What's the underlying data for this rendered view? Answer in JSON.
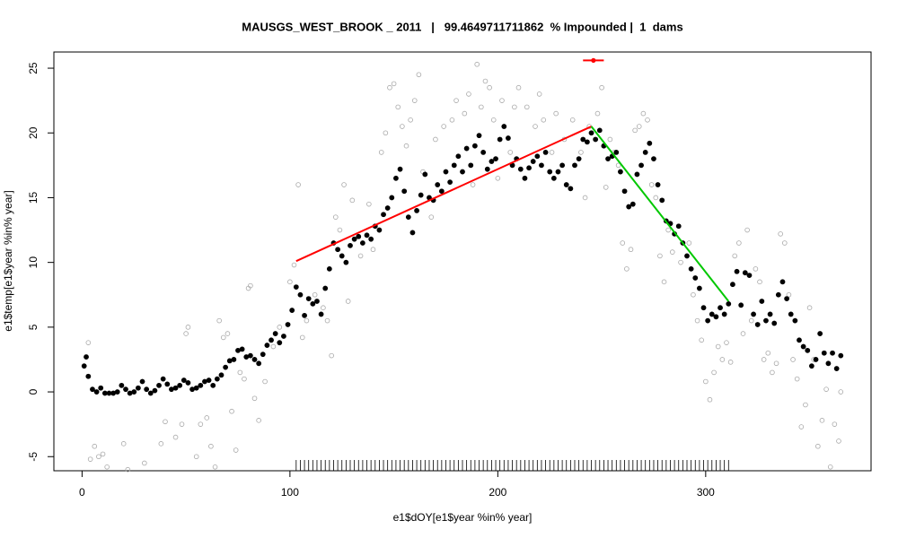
{
  "chart_data": {
    "type": "scatter",
    "title": "MAUSGS_WEST_BROOK _ 2011   |   99.4649711711862  % Impounded |  1  dams",
    "xlabel": "e1$dOY[e1$year %in% year]",
    "ylabel": "e1$temp[e1$year %in% year]",
    "xlim": [
      -13.56,
      379.56
    ],
    "ylim": [
      -6.09,
      26.25
    ],
    "xticks": [
      0,
      100,
      200,
      300
    ],
    "yticks": [
      -5,
      0,
      5,
      10,
      15,
      20,
      25
    ],
    "series": [
      {
        "color": "#000000",
        "marker": "filled",
        "x": [
          1,
          2,
          3,
          5,
          7,
          9,
          11,
          13,
          15,
          17,
          19,
          21,
          23,
          25,
          27,
          29,
          31,
          33,
          35,
          37,
          39,
          41,
          43,
          45,
          47,
          49,
          51,
          53,
          55,
          57,
          59,
          61,
          63,
          65,
          67,
          69,
          71,
          73,
          75,
          77,
          79,
          81,
          83,
          85,
          87,
          89,
          91,
          93,
          95,
          97,
          99,
          101,
          103,
          105,
          107,
          109,
          111,
          113,
          115,
          117,
          119,
          121,
          123,
          125,
          127,
          129,
          131,
          133,
          135,
          137,
          139,
          141,
          143,
          145,
          147,
          149,
          151,
          153,
          155,
          157,
          159,
          161,
          163,
          165,
          167,
          169,
          171,
          173,
          175,
          177,
          179,
          181,
          183,
          185,
          187,
          189,
          191,
          193,
          195,
          197,
          199,
          201,
          203,
          205,
          207,
          209,
          211,
          213,
          215,
          217,
          219,
          221,
          223,
          225,
          227,
          229,
          231,
          233,
          235,
          237,
          239,
          241,
          243,
          245,
          247,
          249,
          251,
          253,
          255,
          257,
          259,
          261,
          263,
          265,
          267,
          269,
          271,
          273,
          275,
          277,
          279,
          281,
          283,
          285,
          287,
          289,
          291,
          293,
          295,
          297,
          299,
          301,
          303,
          305,
          307,
          309,
          311,
          313,
          315,
          317,
          319,
          321,
          323,
          325,
          327,
          329,
          331,
          333,
          335,
          337,
          339,
          341,
          343,
          345,
          347,
          349,
          351,
          353,
          355,
          357,
          359,
          361,
          363,
          365
        ],
        "values": [
          2.0,
          2.7,
          1.2,
          0.2,
          0,
          0.3,
          -0.1,
          -0.1,
          -0.1,
          0,
          0.5,
          0.2,
          -0.1,
          0,
          0.3,
          0.8,
          0.2,
          -0.1,
          0.1,
          0.5,
          1.0,
          0.6,
          0.2,
          0.3,
          0.5,
          0.9,
          0.7,
          0.2,
          0.3,
          0.5,
          0.8,
          0.9,
          0.5,
          1.0,
          1.3,
          1.9,
          2.4,
          2.5,
          3.2,
          3.3,
          2.7,
          2.8,
          2.5,
          2.2,
          2.9,
          3.6,
          4.0,
          4.5,
          3.8,
          4.3,
          5.2,
          6.3,
          8.1,
          7.5,
          5.9,
          7.2,
          6.8,
          7.0,
          6.0,
          8.0,
          9.5,
          11.5,
          11.0,
          10.5,
          10.0,
          11.3,
          11.8,
          12.0,
          11.5,
          12.1,
          11.8,
          12.8,
          12.5,
          13.7,
          14.2,
          15.0,
          16.5,
          17.2,
          15.5,
          13.5,
          12.3,
          14.0,
          15.2,
          16.8,
          15.0,
          14.8,
          16.0,
          15.5,
          17.0,
          16.2,
          17.5,
          18.2,
          17.0,
          18.8,
          17.5,
          19.0,
          19.8,
          18.5,
          17.2,
          17.8,
          18.0,
          19.5,
          20.5,
          19.6,
          17.5,
          18.0,
          17.2,
          16.5,
          17.3,
          17.8,
          18.2,
          17.5,
          18.5,
          17.0,
          16.5,
          17.0,
          17.5,
          16.0,
          15.7,
          17.5,
          18.0,
          19.5,
          19.3,
          20.0,
          19.5,
          20.2,
          19.0,
          18.0,
          18.2,
          18.5,
          17.0,
          15.5,
          14.3,
          14.5,
          16.8,
          17.5,
          18.5,
          19.2,
          18.0,
          16.0,
          14.8,
          13.2,
          13.0,
          12.2,
          12.8,
          11.5,
          10.5,
          9.5,
          8.8,
          8.0,
          6.5,
          5.5,
          6.0,
          5.8,
          6.5,
          6.0,
          6.8,
          8.3,
          9.3,
          6.7,
          9.2,
          9.0,
          6.0,
          5.2,
          7.0,
          5.5,
          6.0,
          5.3,
          7.5,
          8.5,
          7.2,
          6.0,
          5.5,
          4.0,
          3.5,
          3.2,
          2.0,
          2.5,
          4.5,
          3.0,
          2.2,
          3.0,
          1.8,
          2.8
        ]
      },
      {
        "color": "#a8a8a8",
        "marker": "open",
        "x": [
          3,
          4,
          6,
          8,
          10,
          12,
          20,
          22,
          30,
          38,
          40,
          45,
          48,
          50,
          51,
          55,
          57,
          60,
          62,
          64,
          66,
          68,
          70,
          72,
          74,
          76,
          78,
          80,
          81,
          83,
          85,
          88,
          92,
          95,
          100,
          102,
          104,
          106,
          108,
          112,
          116,
          118,
          120,
          122,
          124,
          126,
          128,
          130,
          134,
          138,
          140,
          144,
          146,
          148,
          150,
          152,
          154,
          156,
          158,
          160,
          162,
          164,
          168,
          170,
          174,
          178,
          180,
          184,
          186,
          188,
          190,
          192,
          194,
          196,
          198,
          200,
          202,
          206,
          208,
          210,
          214,
          218,
          220,
          222,
          226,
          228,
          232,
          236,
          240,
          242,
          244,
          248,
          250,
          252,
          254,
          256,
          258,
          260,
          262,
          264,
          266,
          268,
          270,
          272,
          274,
          276,
          278,
          280,
          282,
          284,
          288,
          292,
          294,
          296,
          298,
          300,
          302,
          304,
          306,
          308,
          310,
          312,
          314,
          316,
          318,
          320,
          322,
          324,
          326,
          328,
          330,
          332,
          334,
          336,
          338,
          340,
          342,
          344,
          346,
          348,
          350,
          352,
          354,
          356,
          358,
          360,
          362,
          364,
          365
        ],
        "values": [
          3.8,
          -5.2,
          -4.2,
          -5.0,
          -4.8,
          -5.8,
          -4.0,
          -6.0,
          -5.5,
          -4.0,
          -2.3,
          -3.5,
          -2.5,
          4.5,
          5.0,
          -5.0,
          -2.5,
          -2.0,
          -4.2,
          -5.8,
          5.5,
          4.2,
          4.5,
          -1.5,
          -4.5,
          1.5,
          1.0,
          8.0,
          8.2,
          -0.5,
          -2.2,
          0.8,
          3.5,
          5.0,
          8.5,
          9.8,
          16.0,
          4.2,
          5.5,
          7.5,
          6.5,
          5.5,
          2.8,
          13.5,
          12.5,
          16.0,
          7.0,
          14.8,
          10.5,
          14.5,
          11.0,
          18.5,
          20.0,
          23.5,
          23.8,
          22.0,
          20.5,
          19.0,
          21.0,
          22.5,
          24.5,
          17.0,
          13.5,
          19.5,
          20.5,
          21.0,
          22.5,
          21.5,
          23.0,
          16.0,
          25.3,
          22.0,
          24.0,
          23.5,
          21.0,
          16.5,
          22.5,
          18.5,
          22.0,
          23.5,
          22.0,
          20.5,
          23.0,
          21.0,
          18.5,
          21.5,
          19.5,
          21.0,
          18.5,
          15.0,
          20.5,
          21.5,
          23.5,
          15.8,
          19.5,
          18.5,
          17.5,
          11.5,
          9.5,
          11.0,
          20.2,
          20.5,
          21.5,
          21.0,
          16.0,
          15.0,
          10.5,
          8.5,
          12.5,
          10.8,
          10.0,
          11.5,
          7.5,
          5.5,
          4.0,
          0.8,
          -0.6,
          1.5,
          3.5,
          2.5,
          3.8,
          2.3,
          10.5,
          11.5,
          4.5,
          12.5,
          5.5,
          9.5,
          8.5,
          2.5,
          3.0,
          1.5,
          2.2,
          12.2,
          11.5,
          7.5,
          2.5,
          1.0,
          -2.7,
          -1.0,
          6.5,
          2.5,
          -4.2,
          -2.2,
          0.2,
          -5.8,
          -2.5,
          -3.8,
          0.0
        ]
      }
    ],
    "lines": [
      {
        "color": "#ff0000",
        "x": [
          103,
          245
        ],
        "values": [
          10.1,
          20.5
        ]
      },
      {
        "color": "#00c800",
        "x": [
          245,
          311
        ],
        "values": [
          20.5,
          7.0
        ]
      }
    ],
    "errorbar": {
      "color": "#ff0000",
      "x": 246,
      "value": 25.6,
      "xerr": [
        241,
        251
      ]
    },
    "rug": [
      103,
      105,
      107,
      109,
      111,
      113,
      115,
      117,
      119,
      121,
      123,
      125,
      127,
      129,
      131,
      133,
      135,
      137,
      139,
      141,
      143,
      145,
      147,
      149,
      151,
      153,
      155,
      157,
      159,
      161,
      163,
      165,
      167,
      169,
      171,
      173,
      175,
      177,
      179,
      181,
      183,
      185,
      187,
      189,
      191,
      193,
      195,
      197,
      199,
      201,
      203,
      205,
      207,
      209,
      211,
      213,
      215,
      217,
      219,
      221,
      223,
      225,
      227,
      229,
      231,
      233,
      235,
      237,
      239,
      241,
      243,
      245,
      247,
      249,
      251,
      253,
      255,
      257,
      259,
      261,
      263,
      265,
      267,
      269,
      271,
      273,
      275,
      277,
      279,
      281,
      283,
      285,
      287,
      289,
      291,
      293,
      295,
      297,
      299,
      301,
      303,
      305,
      307,
      309,
      311
    ]
  }
}
